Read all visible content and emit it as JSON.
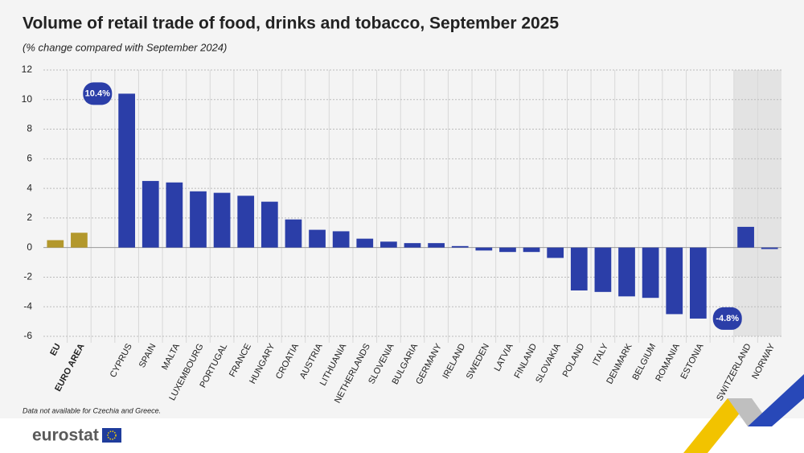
{
  "chart_data": {
    "type": "bar",
    "title": "Volume of retail trade of food, drinks and tobacco, September 2025",
    "subtitle": "(% change compared with September 2024)",
    "footnote": "Data not available for Czechia and Greece.",
    "brand": "eurostat",
    "categories": [
      "EU",
      "EURO AREA",
      null,
      "CYPRUS",
      "SPAIN",
      "MALTA",
      "LUXEMBOURG",
      "PORTUGAL",
      "FRANCE",
      "HUNGARY",
      "CROATIA",
      "AUSTRIA",
      "LITHUANIA",
      "NETHERLANDS",
      "SLOVENIA",
      "BULGARIA",
      "GERMANY",
      "IRELAND",
      "SWEDEN",
      "LATVIA",
      "FINLAND",
      "SLOVAKIA",
      "POLAND",
      "ITALY",
      "DENMARK",
      "BELGIUM",
      "ROMANIA",
      "ESTONIA",
      null,
      "SWITZERLAND",
      "NORWAY"
    ],
    "values": [
      0.5,
      1.0,
      null,
      10.4,
      4.5,
      4.4,
      3.8,
      3.7,
      3.5,
      3.1,
      1.9,
      1.2,
      1.1,
      0.6,
      0.4,
      0.3,
      0.3,
      0.1,
      -0.2,
      -0.3,
      -0.3,
      -0.7,
      -2.9,
      -3.0,
      -3.3,
      -3.4,
      -4.5,
      -4.8,
      null,
      1.4,
      -0.1
    ],
    "value_labels": [
      null,
      null,
      null,
      "10.4%",
      null,
      null,
      null,
      null,
      null,
      null,
      null,
      null,
      null,
      null,
      null,
      null,
      null,
      null,
      null,
      null,
      null,
      null,
      null,
      null,
      null,
      null,
      null,
      "-4.8%",
      null,
      null,
      null
    ],
    "color": "#2b3ea8",
    "highlight_color": "#b3982c",
    "highlight_indices": [
      0,
      1
    ],
    "shaded_from_index": 29,
    "ylim": [
      -6,
      12
    ],
    "yticks": [
      -6,
      -4,
      -2,
      0,
      2,
      4,
      6,
      8,
      10,
      12
    ],
    "grid": true
  }
}
